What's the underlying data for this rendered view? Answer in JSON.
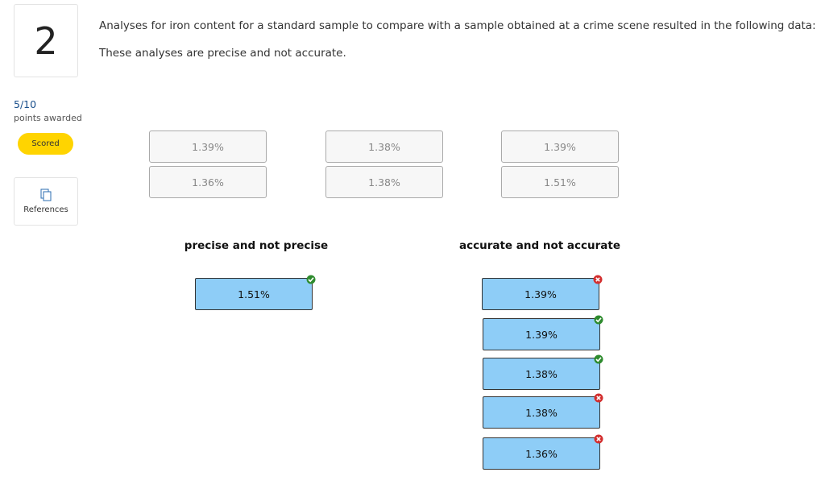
{
  "question": {
    "number": "2",
    "prompt": "Analyses for iron content for a standard sample to compare with a sample obtained at a crime scene resulted in the following data:",
    "note": "These analyses are precise and not accurate."
  },
  "sidebar": {
    "score": "5/10",
    "score_caption": "points awarded",
    "status": "Scored",
    "references": "References"
  },
  "source_items": [
    [
      "1.39%",
      "1.36%"
    ],
    [
      "1.38%",
      "1.38%"
    ],
    [
      "1.39%",
      "1.51%"
    ]
  ],
  "targets": [
    {
      "heading": "precise and not precise",
      "items": [
        "1.51%"
      ]
    },
    {
      "heading": "accurate and not accurate",
      "items": [
        "1.39%",
        "1.39%",
        "1.38%",
        "1.38%",
        "1.36%"
      ]
    }
  ]
}
